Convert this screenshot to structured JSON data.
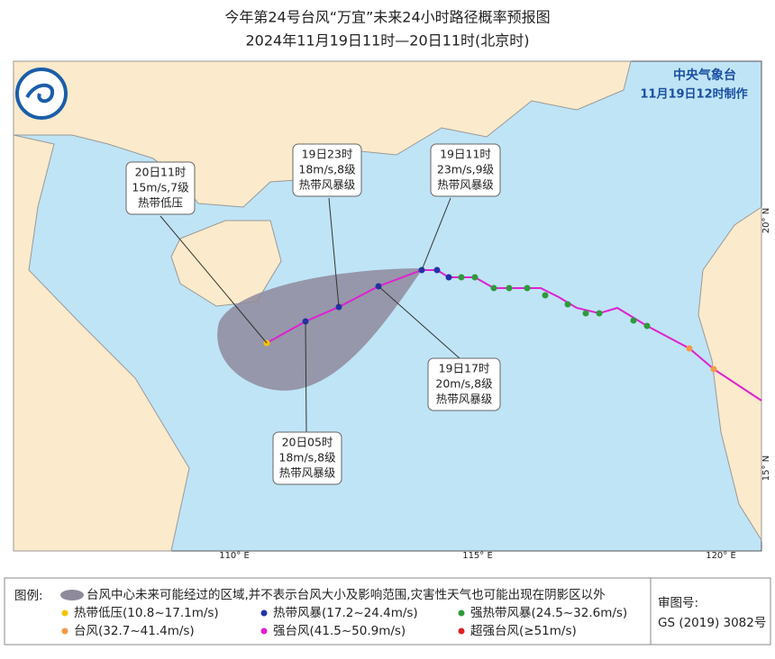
{
  "header": {
    "title": "今年第24号台风“万宜”未来24小时路径概率预报图",
    "subtitle": "2024年11月19日11时—20日11时(北京时)"
  },
  "agency": {
    "name": "中央气象台",
    "issued": "11月19日12时制作"
  },
  "callouts": [
    {
      "time": "20日11时",
      "wind": "15m/s,7级",
      "level": "热带低压"
    },
    {
      "time": "19日23时",
      "wind": "18m/s,8级",
      "level": "热带风暴级"
    },
    {
      "time": "19日11时",
      "wind": "23m/s,9级",
      "level": "热带风暴级"
    },
    {
      "time": "19日17时",
      "wind": "20m/s,8级",
      "level": "热带风暴级"
    },
    {
      "time": "20日05时",
      "wind": "18m/s,8级",
      "level": "热带风暴级"
    }
  ],
  "axis": {
    "lon": [
      "110° E",
      "115° E",
      "120° E"
    ],
    "lat": [
      "20° N",
      "15° N"
    ]
  },
  "legend": {
    "title": "图例:",
    "cone": "台风中心未来可能经过的区域,并不表示台风大小及影响范围,灾害性天气也可能出现在阴影区以外",
    "items": [
      "热带低压(10.8~17.1m/s)",
      "热带风暴(17.2~24.4m/s)",
      "强热带风暴(24.5~32.6m/s)",
      "台风(32.7~41.4m/s)",
      "强台风(41.5~50.9m/s)",
      "超强台风(≥51m/s)"
    ]
  },
  "approval": {
    "label": "审图号:",
    "number": "GS (2019) 3082号"
  }
}
